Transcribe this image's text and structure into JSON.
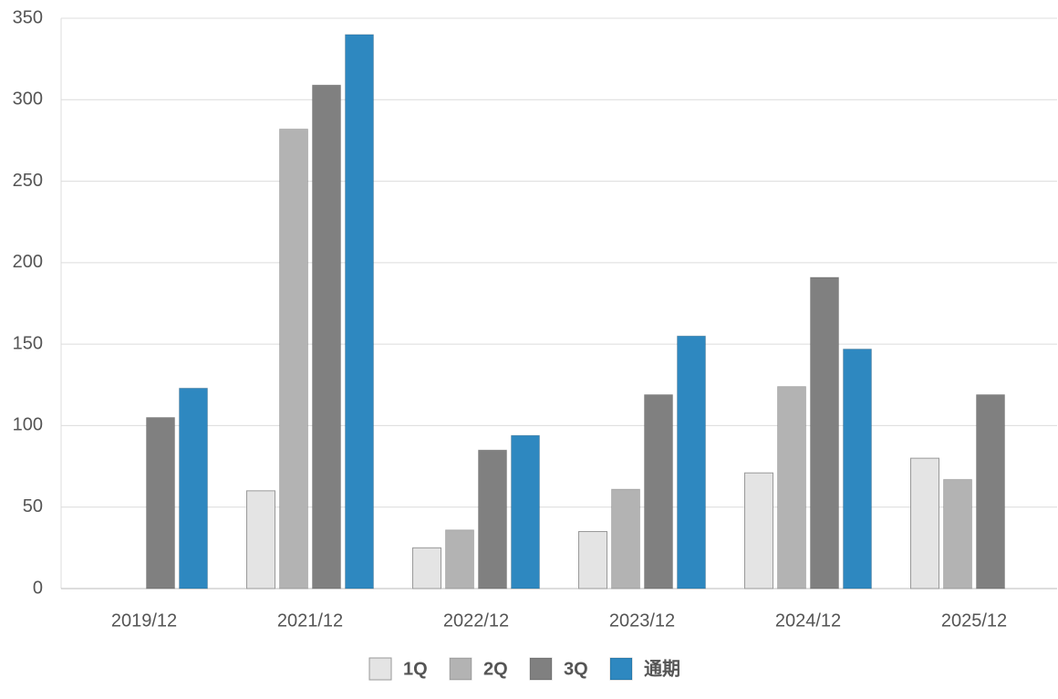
{
  "chart_data": {
    "type": "bar",
    "categories": [
      "2019/12",
      "2021/12",
      "2022/12",
      "2023/12",
      "2024/12",
      "2025/12"
    ],
    "series": [
      {
        "name": "1Q",
        "color": "#e4e4e4",
        "values": [
          null,
          60,
          25,
          35,
          71,
          80
        ]
      },
      {
        "name": "2Q",
        "color": "#b3b3b3",
        "values": [
          null,
          282,
          36,
          61,
          124,
          67
        ]
      },
      {
        "name": "3Q",
        "color": "#808080",
        "values": [
          105,
          309,
          85,
          119,
          191,
          119
        ]
      },
      {
        "name": "通期",
        "color": "#2e88c0",
        "values": [
          123,
          340,
          94,
          155,
          147,
          null
        ]
      }
    ],
    "ylim": [
      0,
      350
    ],
    "yticks": [
      0,
      50,
      100,
      150,
      200,
      250,
      300,
      350
    ],
    "grid": true,
    "legend": "bottom"
  }
}
